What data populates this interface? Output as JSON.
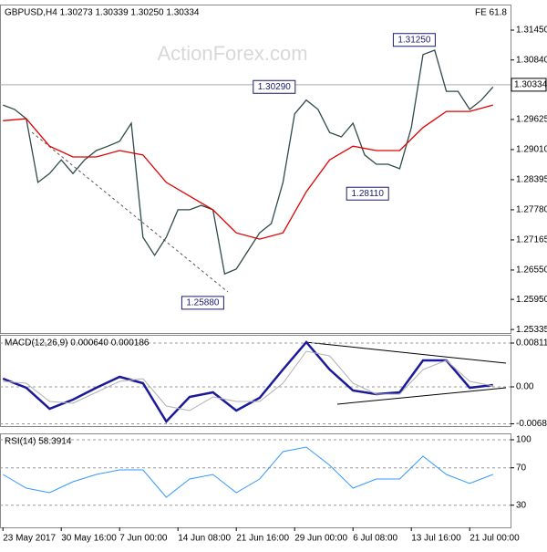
{
  "chart_data": [
    {
      "type": "line",
      "title": "GBPUSD,H4  1.30273 1.30339 1.30250 1.30334",
      "note": "FE 61.8",
      "watermark": "ActionForex.com",
      "xlim": [
        -2,
        348
      ],
      "ylim": [
        1.25263,
        1.31972
      ],
      "yticks": [
        {
          "value": 1.3145,
          "label": "1.31450"
        },
        {
          "value": 1.3084,
          "label": "1.30840"
        },
        1.29625,
        {
          "value": 1.2901,
          "label": "1.29010"
        },
        1.28395,
        {
          "value": 1.2778,
          "label": "1.27780"
        },
        1.27165,
        {
          "value": 1.2655,
          "label": "1.26550"
        },
        {
          "value": 1.2595,
          "label": "1.25950"
        },
        1.25335
      ],
      "last": {
        "value": 1.30334,
        "label": "1.30334"
      },
      "series": [
        {
          "color": "#2f4a4a",
          "x": [
            0,
            8,
            16,
            24,
            32,
            40,
            48,
            56,
            64,
            72,
            80,
            88,
            96,
            104,
            112,
            120,
            128,
            136,
            144,
            152,
            160,
            168,
            176,
            184,
            192,
            200,
            208,
            216,
            224,
            232,
            240,
            248,
            256,
            264,
            272,
            280,
            288,
            296,
            304,
            312,
            320,
            328,
            336
          ],
          "values": [
            1.2992,
            1.2983,
            1.2964,
            1.2834,
            1.2852,
            1.288,
            1.2852,
            1.288,
            1.2899,
            1.2908,
            1.2918,
            1.2955,
            1.2722,
            1.2685,
            1.2722,
            1.2778,
            1.2778,
            1.2787,
            1.2778,
            1.2647,
            1.2657,
            1.2694,
            1.2731,
            1.275,
            1.2834,
            1.2974,
            1.3002,
            1.2983,
            1.2936,
            1.2927,
            1.2955,
            1.289,
            1.2871,
            1.2871,
            1.2862,
            1.2946,
            1.3095,
            1.3104,
            1.302,
            1.302,
            1.2983,
            1.3002,
            1.3029
          ]
        },
        {
          "color": "#e00000",
          "x": [
            0,
            16,
            32,
            48,
            64,
            80,
            96,
            112,
            128,
            144,
            160,
            176,
            192,
            208,
            224,
            240,
            256,
            272,
            288,
            304,
            320,
            336
          ],
          "values": [
            1.296,
            1.2964,
            1.2908,
            1.2886,
            1.2886,
            1.2899,
            1.289,
            1.2834,
            1.2806,
            1.2778,
            1.2731,
            1.2718,
            1.2731,
            1.2815,
            1.288,
            1.2908,
            1.2899,
            1.2899,
            1.2946,
            1.2979,
            1.2979,
            1.2992
          ]
        }
      ],
      "annotations": [
        {
          "x": 282,
          "value": 1.3125,
          "label": "1.31250"
        },
        {
          "x": 186,
          "value": 1.3029,
          "label": "1.30290"
        },
        {
          "x": 250,
          "value": 1.2811,
          "label": "1.28110"
        },
        {
          "x": 137,
          "value": 1.2588,
          "label": "1.25880"
        }
      ]
    },
    {
      "type": "line",
      "title": "MACD(12,26,9) 0.000640 0.000186",
      "xlim": [
        -2,
        348
      ],
      "ylim": [
        -0.00727,
        0.00964
      ],
      "yticks": [
        0.008118,
        {
          "value": 0,
          "label": "0.00"
        },
        -0.006844
      ],
      "grid": true,
      "series": [
        {
          "color": "#1a1a9a",
          "width": 2.5,
          "x": [
            0,
            16,
            32,
            48,
            64,
            80,
            96,
            112,
            128,
            144,
            160,
            176,
            192,
            208,
            224,
            240,
            256,
            272,
            288,
            304,
            320,
            336
          ],
          "values": [
            0.00152,
            -0.00017,
            -0.00406,
            -0.00237,
            -0.00017,
            0.00186,
            0.00068,
            -0.00643,
            -0.00186,
            -0.00101,
            -0.0044,
            -0.00203,
            0.00321,
            0.00829,
            0.00321,
            -0.00068,
            -0.00135,
            -0.00101,
            0.0049,
            0.0049,
            -0.00017,
            0.00034
          ]
        },
        {
          "color": "#b0b0b0",
          "width": 1,
          "x": [
            0,
            16,
            32,
            48,
            64,
            80,
            96,
            112,
            128,
            144,
            160,
            176,
            192,
            208,
            224,
            240,
            256,
            272,
            288,
            304,
            320,
            336
          ],
          "values": [
            0.00101,
            0.00068,
            -0.00271,
            -0.00304,
            -0.00101,
            0.00101,
            0.00152,
            -0.00355,
            -0.0044,
            -0.00186,
            -0.00271,
            -0.00271,
            0.00068,
            0.0066,
            0.00575,
            0.00068,
            -0.00135,
            -0.00135,
            0.00321,
            0.0049,
            0.00101,
            0.00017
          ]
        }
      ]
    },
    {
      "type": "line",
      "title": "RSI(14) 58.3914",
      "xlim": [
        -2,
        348
      ],
      "ylim": [
        6.3,
        106.8
      ],
      "yticks": [
        100,
        70,
        30
      ],
      "grid": true,
      "xticks": [
        {
          "value": 0,
          "label": "23 May 2017"
        },
        {
          "value": 40,
          "label": "30 May 16:00"
        },
        {
          "value": 80,
          "label": "7 Jun 00:00"
        },
        {
          "value": 120,
          "label": "14 Jun 08:00"
        },
        {
          "value": 160,
          "label": "21 Jun 16:00"
        },
        {
          "value": 200,
          "label": "29 Jun 00:00"
        },
        {
          "value": 240,
          "label": "6 Jul 08:00"
        },
        {
          "value": 280,
          "label": "13 Jul 16:00"
        },
        {
          "value": 320,
          "label": "21 Jul 00:00"
        }
      ],
      "series": [
        {
          "color": "#3399ff",
          "width": 1,
          "x": [
            0,
            16,
            32,
            48,
            64,
            80,
            96,
            112,
            128,
            144,
            160,
            176,
            192,
            208,
            224,
            240,
            256,
            272,
            288,
            304,
            320,
            336
          ],
          "values": [
            62.9,
            48.3,
            43.4,
            55.1,
            62.9,
            67.8,
            67.8,
            38.5,
            58.0,
            62.9,
            43.4,
            58.0,
            87.3,
            92.2,
            72.7,
            48.3,
            58.0,
            58.0,
            82.4,
            62.9,
            53.2,
            62.9
          ]
        }
      ]
    }
  ]
}
